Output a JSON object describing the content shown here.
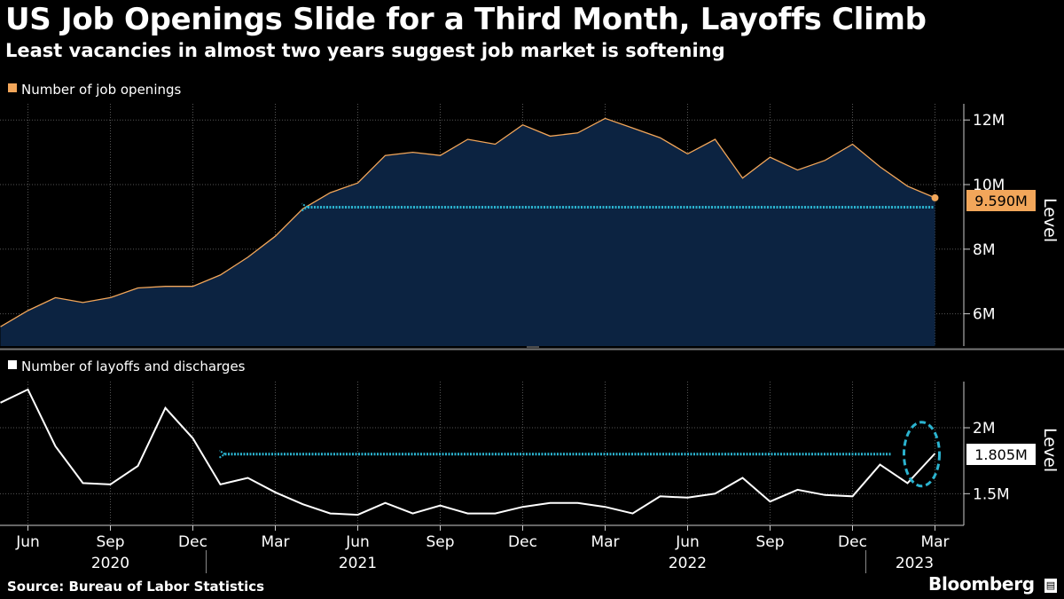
{
  "header": {
    "title": "US Job Openings Slide for a Third Month, Layoffs Climb",
    "subtitle": "Least vacancies in almost two years suggest job market is softening"
  },
  "footer": {
    "source": "Source: Bureau of Labor Statistics",
    "brand": "Bloomberg"
  },
  "colors": {
    "background": "#000000",
    "area_fill": "#0c2341",
    "openings_line": "#f2a65a",
    "layoffs_line": "#ffffff",
    "annotation": "#2bb3cf",
    "grid": "#555555"
  },
  "x_axis": {
    "months": [
      {
        "label": "Jun",
        "x": "2020-06"
      },
      {
        "label": "Sep",
        "x": "2020-09"
      },
      {
        "label": "Dec",
        "x": "2020-12"
      },
      {
        "label": "Mar",
        "x": "2021-03"
      },
      {
        "label": "Jun",
        "x": "2021-06"
      },
      {
        "label": "Sep",
        "x": "2021-09"
      },
      {
        "label": "Dec",
        "x": "2021-12"
      },
      {
        "label": "Mar",
        "x": "2022-03"
      },
      {
        "label": "Jun",
        "x": "2022-06"
      },
      {
        "label": "Sep",
        "x": "2022-09"
      },
      {
        "label": "Dec",
        "x": "2022-12"
      },
      {
        "label": "Mar",
        "x": "2023-03"
      }
    ],
    "years": [
      {
        "label": "2020",
        "x": "2020-09"
      },
      {
        "label": "2021",
        "x": "2021-06"
      },
      {
        "label": "2022",
        "x": "2022-06"
      },
      {
        "label": "2023",
        "x": "2023-02"
      }
    ]
  },
  "chart_data": [
    {
      "type": "area",
      "legend": "Number of job openings",
      "ylabel": "Level",
      "ylim": [
        5.0,
        12.5
      ],
      "yticks": [
        {
          "value": 6,
          "label": "6M"
        },
        {
          "value": 8,
          "label": "8M"
        },
        {
          "value": 10,
          "label": "10M"
        },
        {
          "value": 12,
          "label": "12M"
        }
      ],
      "last_value_label": "9.590M",
      "x": [
        "2020-05",
        "2020-06",
        "2020-07",
        "2020-08",
        "2020-09",
        "2020-10",
        "2020-11",
        "2020-12",
        "2021-01",
        "2021-02",
        "2021-03",
        "2021-04",
        "2021-05",
        "2021-06",
        "2021-07",
        "2021-08",
        "2021-09",
        "2021-10",
        "2021-11",
        "2021-12",
        "2022-01",
        "2022-02",
        "2022-03",
        "2022-04",
        "2022-05",
        "2022-06",
        "2022-07",
        "2022-08",
        "2022-09",
        "2022-10",
        "2022-11",
        "2022-12",
        "2023-01",
        "2023-02",
        "2023-03"
      ],
      "values": [
        5.6,
        6.1,
        6.5,
        6.35,
        6.5,
        6.8,
        6.85,
        6.85,
        7.2,
        7.75,
        8.4,
        9.25,
        9.75,
        10.05,
        10.9,
        11.0,
        10.9,
        11.4,
        11.25,
        11.85,
        11.5,
        11.6,
        12.05,
        11.75,
        11.45,
        10.95,
        11.4,
        10.2,
        10.85,
        10.45,
        10.75,
        11.25,
        10.55,
        9.95,
        9.59
      ],
      "annotation_arrow": {
        "from": "2023-03",
        "to": "2021-04",
        "value": 9.3
      }
    },
    {
      "type": "line",
      "legend": "Number of layoffs and discharges",
      "ylabel": "Level",
      "ylim": [
        1.26,
        2.35
      ],
      "yticks": [
        {
          "value": 1.5,
          "label": "1.5M"
        },
        {
          "value": 2.0,
          "label": "2M"
        }
      ],
      "last_value_label": "1.805M",
      "x": [
        "2020-05",
        "2020-06",
        "2020-07",
        "2020-08",
        "2020-09",
        "2020-10",
        "2020-11",
        "2020-12",
        "2021-01",
        "2021-02",
        "2021-03",
        "2021-04",
        "2021-05",
        "2021-06",
        "2021-07",
        "2021-08",
        "2021-09",
        "2021-10",
        "2021-11",
        "2021-12",
        "2022-01",
        "2022-02",
        "2022-03",
        "2022-04",
        "2022-05",
        "2022-06",
        "2022-07",
        "2022-08",
        "2022-09",
        "2022-10",
        "2022-11",
        "2022-12",
        "2023-01",
        "2023-02",
        "2023-03"
      ],
      "values": [
        2.19,
        2.29,
        1.86,
        1.58,
        1.57,
        1.71,
        2.15,
        1.92,
        1.57,
        1.62,
        1.51,
        1.42,
        1.35,
        1.34,
        1.43,
        1.35,
        1.41,
        1.35,
        1.35,
        1.4,
        1.43,
        1.43,
        1.4,
        1.35,
        1.48,
        1.47,
        1.5,
        1.62,
        1.44,
        1.53,
        1.49,
        1.48,
        1.72,
        1.58,
        1.805
      ],
      "annotation_arrow": {
        "from": "2023-01",
        "to": "2021-01",
        "value": 1.8
      },
      "annotation_circle": {
        "x": "2023-02",
        "value": 1.8
      }
    }
  ]
}
